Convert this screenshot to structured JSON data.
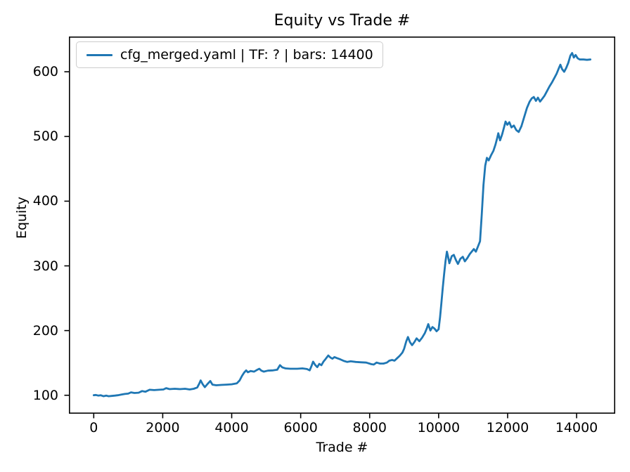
{
  "chart_data": {
    "type": "line",
    "title": "Equity vs Trade #",
    "xlabel": "Trade #",
    "ylabel": "Equity",
    "xlim": [
      -720,
      15120
    ],
    "ylim": [
      71.5,
      654.5
    ],
    "xticks": [
      0,
      2000,
      4000,
      6000,
      8000,
      10000,
      12000,
      14000
    ],
    "yticks": [
      100,
      200,
      300,
      400,
      500,
      600
    ],
    "grid": false,
    "legend": {
      "position": "upper left",
      "entries": [
        {
          "label": "cfg_merged.yaml | TF: ? | bars: 14400",
          "color": "#1f77b4"
        }
      ]
    },
    "series": [
      {
        "name": "cfg_merged.yaml | TF: ? | bars: 14400",
        "color": "#1f77b4",
        "points": [
          [
            0,
            100
          ],
          [
            60,
            100.5
          ],
          [
            130,
            99.5
          ],
          [
            200,
            100
          ],
          [
            280,
            98.5
          ],
          [
            360,
            99.5
          ],
          [
            430,
            98.5
          ],
          [
            520,
            99
          ],
          [
            620,
            99.5
          ],
          [
            700,
            100
          ],
          [
            800,
            101
          ],
          [
            900,
            102
          ],
          [
            1000,
            102.5
          ],
          [
            1080,
            104.5
          ],
          [
            1180,
            103.5
          ],
          [
            1300,
            104
          ],
          [
            1400,
            106.5
          ],
          [
            1500,
            105.5
          ],
          [
            1620,
            108.5
          ],
          [
            1750,
            108
          ],
          [
            1900,
            108.5
          ],
          [
            2020,
            109
          ],
          [
            2100,
            111
          ],
          [
            2200,
            109.5
          ],
          [
            2350,
            110
          ],
          [
            2500,
            109.5
          ],
          [
            2650,
            110
          ],
          [
            2780,
            109
          ],
          [
            2900,
            110
          ],
          [
            3000,
            112
          ],
          [
            3060,
            118
          ],
          [
            3100,
            123
          ],
          [
            3160,
            117
          ],
          [
            3220,
            112.5
          ],
          [
            3300,
            117.5
          ],
          [
            3380,
            122
          ],
          [
            3440,
            116.5
          ],
          [
            3550,
            115.5
          ],
          [
            3700,
            116
          ],
          [
            3850,
            116.5
          ],
          [
            4000,
            117
          ],
          [
            4150,
            118.5
          ],
          [
            4230,
            123
          ],
          [
            4300,
            130
          ],
          [
            4360,
            135
          ],
          [
            4420,
            138.5
          ],
          [
            4470,
            135.5
          ],
          [
            4550,
            137.5
          ],
          [
            4650,
            136.5
          ],
          [
            4730,
            139
          ],
          [
            4800,
            141
          ],
          [
            4860,
            138
          ],
          [
            4930,
            136.5
          ],
          [
            5050,
            138
          ],
          [
            5200,
            138.5
          ],
          [
            5320,
            139.5
          ],
          [
            5400,
            146.5
          ],
          [
            5470,
            143
          ],
          [
            5560,
            141.5
          ],
          [
            5700,
            141
          ],
          [
            5900,
            141
          ],
          [
            6050,
            141.5
          ],
          [
            6180,
            140.5
          ],
          [
            6260,
            138.5
          ],
          [
            6320,
            146
          ],
          [
            6360,
            152
          ],
          [
            6420,
            147
          ],
          [
            6480,
            143.5
          ],
          [
            6540,
            148.5
          ],
          [
            6600,
            146.5
          ],
          [
            6660,
            152
          ],
          [
            6720,
            156
          ],
          [
            6800,
            161.5
          ],
          [
            6860,
            158.5
          ],
          [
            6920,
            156.5
          ],
          [
            6980,
            159
          ],
          [
            7050,
            157.5
          ],
          [
            7150,
            155.5
          ],
          [
            7250,
            153
          ],
          [
            7350,
            151.5
          ],
          [
            7450,
            152.5
          ],
          [
            7600,
            151.5
          ],
          [
            7750,
            151
          ],
          [
            7900,
            150.5
          ],
          [
            8050,
            148
          ],
          [
            8120,
            147.5
          ],
          [
            8200,
            150.5
          ],
          [
            8300,
            149
          ],
          [
            8400,
            149
          ],
          [
            8500,
            150.5
          ],
          [
            8570,
            153.5
          ],
          [
            8650,
            154.5
          ],
          [
            8720,
            153.5
          ],
          [
            8800,
            157.5
          ],
          [
            8870,
            161
          ],
          [
            8950,
            166
          ],
          [
            9000,
            172
          ],
          [
            9060,
            183
          ],
          [
            9110,
            190
          ],
          [
            9170,
            182
          ],
          [
            9230,
            177.5
          ],
          [
            9300,
            182.5
          ],
          [
            9360,
            188
          ],
          [
            9440,
            183.5
          ],
          [
            9520,
            189
          ],
          [
            9600,
            196
          ],
          [
            9660,
            204
          ],
          [
            9700,
            210
          ],
          [
            9760,
            200
          ],
          [
            9820,
            205.5
          ],
          [
            9880,
            203
          ],
          [
            9940,
            199
          ],
          [
            10000,
            202
          ],
          [
            10040,
            220
          ],
          [
            10080,
            243
          ],
          [
            10120,
            266
          ],
          [
            10160,
            288
          ],
          [
            10200,
            308
          ],
          [
            10240,
            322
          ],
          [
            10270,
            315
          ],
          [
            10310,
            304
          ],
          [
            10380,
            315
          ],
          [
            10440,
            317
          ],
          [
            10500,
            309
          ],
          [
            10560,
            303
          ],
          [
            10630,
            311
          ],
          [
            10700,
            314
          ],
          [
            10760,
            307
          ],
          [
            10830,
            312
          ],
          [
            10900,
            318
          ],
          [
            10960,
            322
          ],
          [
            11020,
            326
          ],
          [
            11080,
            322
          ],
          [
            11140,
            330
          ],
          [
            11200,
            338
          ],
          [
            11250,
            380
          ],
          [
            11300,
            425
          ],
          [
            11350,
            455
          ],
          [
            11400,
            467
          ],
          [
            11450,
            463
          ],
          [
            11520,
            471
          ],
          [
            11590,
            478
          ],
          [
            11650,
            488
          ],
          [
            11700,
            498
          ],
          [
            11730,
            505
          ],
          [
            11780,
            494
          ],
          [
            11840,
            503
          ],
          [
            11890,
            513
          ],
          [
            11940,
            523
          ],
          [
            11990,
            518
          ],
          [
            12050,
            522
          ],
          [
            12110,
            514
          ],
          [
            12180,
            517
          ],
          [
            12250,
            510
          ],
          [
            12320,
            507
          ],
          [
            12400,
            516
          ],
          [
            12480,
            530
          ],
          [
            12560,
            544
          ],
          [
            12640,
            554
          ],
          [
            12700,
            559
          ],
          [
            12760,
            561
          ],
          [
            12820,
            555
          ],
          [
            12880,
            560
          ],
          [
            12940,
            554
          ],
          [
            13000,
            558
          ],
          [
            13070,
            563
          ],
          [
            13140,
            570
          ],
          [
            13210,
            577
          ],
          [
            13280,
            583
          ],
          [
            13350,
            590
          ],
          [
            13420,
            597
          ],
          [
            13480,
            605
          ],
          [
            13530,
            611
          ],
          [
            13580,
            604
          ],
          [
            13640,
            600
          ],
          [
            13700,
            606
          ],
          [
            13760,
            614
          ],
          [
            13820,
            625
          ],
          [
            13870,
            629
          ],
          [
            13920,
            622
          ],
          [
            13970,
            626
          ],
          [
            14030,
            621
          ],
          [
            14090,
            619
          ],
          [
            14200,
            619
          ],
          [
            14300,
            618.5
          ],
          [
            14400,
            619
          ]
        ]
      }
    ]
  },
  "colors": {
    "line": "#1f77b4",
    "spine": "#000000",
    "tick": "#000000",
    "legend_border": "#cccccc",
    "background": "#ffffff"
  }
}
